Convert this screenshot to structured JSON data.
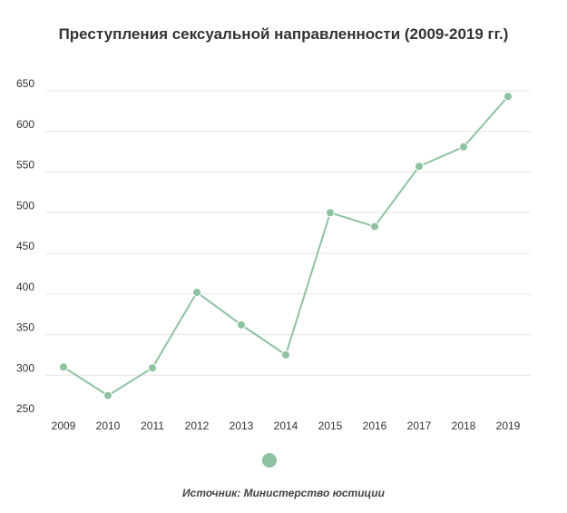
{
  "chart_data": {
    "type": "line",
    "title": "Преступления сексуальной направленности (2009-2019 гг.)",
    "categories": [
      "2009",
      "2010",
      "2011",
      "2012",
      "2013",
      "2014",
      "2015",
      "2016",
      "2017",
      "2018",
      "2019"
    ],
    "series": [
      {
        "values": [
          310,
          275,
          309,
          402,
          362,
          325,
          500,
          483,
          557,
          581,
          643
        ]
      }
    ],
    "y_ticks": [
      "650",
      "600",
      "550",
      "500",
      "450",
      "400",
      "350",
      "300",
      "250"
    ],
    "ylim": [
      250,
      650
    ],
    "xlabel": "",
    "ylabel": "",
    "grid": true,
    "legend_position": "bottom",
    "series_color": "#8fc2a1",
    "grid_color": "#e6e6e6"
  },
  "source_text": "Источник: Министерство юстиции"
}
